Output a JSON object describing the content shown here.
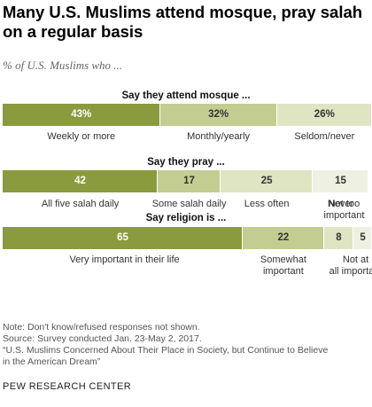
{
  "title": "Many U.S. Muslims attend mosque, pray salah\non a regular basis",
  "subtitle": "% of U.S. Muslims who ...",
  "chart_data": [
    {
      "type": "bar",
      "orientation": "horizontal-stacked",
      "title": "Say they attend mosque ...",
      "categories": [
        "Weekly or more",
        "Monthly/yearly",
        "Seldom/never"
      ],
      "values": [
        43,
        32,
        26
      ],
      "value_labels": [
        "43%",
        "32%",
        "26%"
      ],
      "colors": [
        "#8a9a3e",
        "#c3cd91",
        "#dfe4c3"
      ]
    },
    {
      "type": "bar",
      "orientation": "horizontal-stacked",
      "title": "Say they pray ...",
      "categories": [
        "All five salah daily",
        "Some salah daily",
        "Less often",
        "Never"
      ],
      "values": [
        42,
        17,
        25,
        15
      ],
      "value_labels": [
        "42",
        "17",
        "25",
        "15"
      ],
      "colors": [
        "#8a9a3e",
        "#c3cd91",
        "#dfe4c3",
        "#eef1e2"
      ]
    },
    {
      "type": "bar",
      "orientation": "horizontal-stacked",
      "title": "Say religion is ...",
      "categories": [
        "Very important in their life",
        "Somewhat\nimportant",
        "Not too\nimportant",
        "Not at\nall important"
      ],
      "values": [
        65,
        22,
        8,
        5
      ],
      "value_labels": [
        "65",
        "22",
        "8",
        "5"
      ],
      "colors": [
        "#8a9a3e",
        "#c3cd91",
        "#dfe4c3",
        "#eef1e2"
      ]
    }
  ],
  "notes": {
    "note": "Note: Don't know/refused responses not shown.",
    "source": "Source: Survey conducted Jan. 23-May 2, 2017.",
    "report": "“U.S. Muslims Concerned About Their Place in Society, but Continue to Believe\nin the American Dream”"
  },
  "brand": "PEW RESEARCH CENTER"
}
